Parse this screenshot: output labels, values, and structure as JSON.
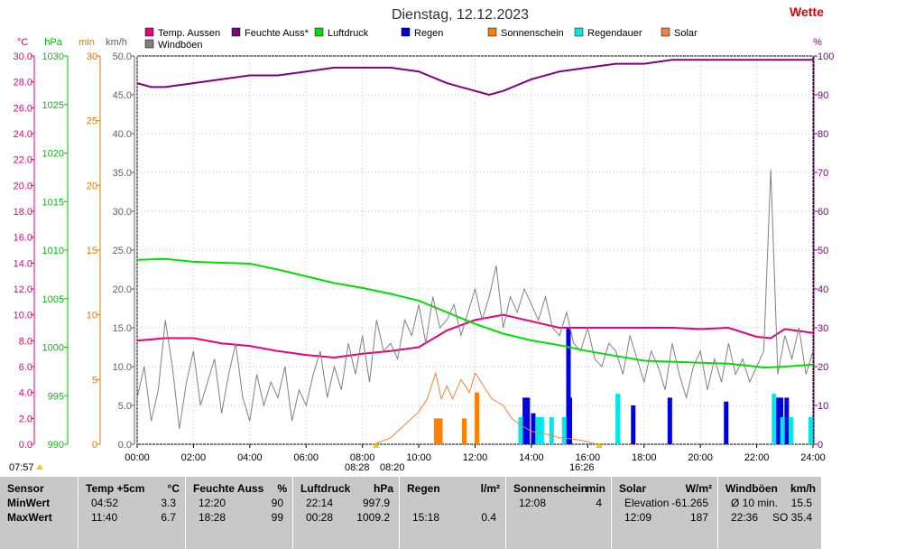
{
  "title": "Dienstag, 12.12.2023",
  "brand": "Wette",
  "legend": [
    {
      "label": "Temp. Aussen",
      "color": "#e8007a"
    },
    {
      "label": "Feuchte Auss*",
      "color": "#800080"
    },
    {
      "label": "Luftdruck",
      "color": "#00e000"
    },
    {
      "label": "Regen",
      "color": "#0000e0"
    },
    {
      "label": "Sonnenschein",
      "color": "#ff8000"
    },
    {
      "label": "Regendauer",
      "color": "#00e8e8"
    },
    {
      "label": "Solar",
      "color": "#f08040"
    },
    {
      "label": "Windböen",
      "color": "#808080"
    }
  ],
  "axis_units": {
    "temp": "°C",
    "pressure": "hPa",
    "sun": "min",
    "wind": "km/h",
    "humidity": "%"
  },
  "markers": {
    "sunrise": "07:57",
    "sun_start": "08:28",
    "sun_start2": "08:20",
    "sunset": "16:26"
  },
  "stats": {
    "columns": [
      {
        "header": "Sensor",
        "unit": "",
        "rows": [
          [
            "MinWert",
            "",
            ""
          ],
          [
            "MaxWert",
            "",
            ""
          ]
        ]
      },
      {
        "header": "Temp +5cm",
        "unit": "°C",
        "rows": [
          [
            "04:52",
            "3.3"
          ],
          [
            "11:40",
            "6.7"
          ]
        ]
      },
      {
        "header": "Feuchte Auss",
        "unit": "%",
        "rows": [
          [
            "12:20",
            "90"
          ],
          [
            "18:28",
            "99"
          ]
        ]
      },
      {
        "header": "Luftdruck",
        "unit": "hPa",
        "rows": [
          [
            "22:14",
            "997.9"
          ],
          [
            "00:28",
            "1009.2"
          ]
        ]
      },
      {
        "header": "Regen",
        "unit": "l/m²",
        "rows": [
          [
            "",
            ""
          ],
          [
            "15:18",
            "0.4"
          ]
        ]
      },
      {
        "header": "Sonnenschein",
        "unit": "min",
        "rows": [
          [
            "12:08",
            "4"
          ],
          [
            "",
            ""
          ]
        ]
      },
      {
        "header": "Solar",
        "unit": "W/m²",
        "rows": [
          [
            "Elevation",
            "-61.265"
          ],
          [
            "12:09",
            "187"
          ]
        ]
      },
      {
        "header": "Windböen",
        "unit": "km/h",
        "rows": [
          [
            "Ø 10 min.",
            "15.5"
          ],
          [
            "22:36",
            "SO 35.4"
          ]
        ]
      }
    ]
  },
  "chart_data": {
    "type": "line",
    "x_ticks": [
      "00:00",
      "02:00",
      "04:00",
      "06:00",
      "08:00",
      "10:00",
      "12:00",
      "14:00",
      "16:00",
      "18:00",
      "20:00",
      "22:00",
      "24:00"
    ],
    "axes": {
      "temp": {
        "range": [
          0,
          30
        ],
        "ticks": [
          "0.0",
          "2.0",
          "4.0",
          "6.0",
          "8.0",
          "10.0",
          "12.0",
          "14.0",
          "16.0",
          "18.0",
          "20.0",
          "22.0",
          "24.0",
          "26.0",
          "28.0",
          "30.0"
        ]
      },
      "pressure": {
        "range": [
          990,
          1030
        ],
        "ticks": [
          "990",
          "995",
          "1000",
          "1005",
          "1010",
          "1015",
          "1020",
          "1025",
          "1030"
        ]
      },
      "sun": {
        "range": [
          0,
          30
        ],
        "ticks": [
          "0",
          "5",
          "10",
          "15",
          "20",
          "25",
          "30"
        ]
      },
      "wind": {
        "range": [
          0,
          50
        ],
        "ticks": [
          "0.0",
          "5.0",
          "10.0",
          "15.0",
          "20.0",
          "25.0",
          "30.0",
          "35.0",
          "40.0",
          "45.0",
          "50.0"
        ]
      },
      "humidity": {
        "range": [
          0,
          100
        ],
        "ticks": [
          "0",
          "10",
          "20",
          "30",
          "40",
          "50",
          "60",
          "70",
          "80",
          "90",
          "100"
        ]
      }
    },
    "series": [
      {
        "name": "Temp. Aussen",
        "axis": "temp",
        "color": "#e8007a",
        "x": [
          0,
          1,
          2,
          3,
          4,
          5,
          6,
          7,
          8,
          9,
          10,
          11,
          12,
          13,
          14,
          15,
          16,
          17,
          18,
          19,
          20,
          21,
          22,
          22.5,
          23,
          24
        ],
        "values": [
          8.0,
          8.2,
          8.2,
          7.8,
          7.6,
          7.2,
          6.9,
          6.7,
          7.0,
          7.2,
          7.5,
          8.8,
          9.6,
          10.0,
          9.5,
          9.0,
          9.0,
          9.0,
          9.0,
          9.0,
          8.9,
          9.0,
          8.3,
          8.2,
          8.9,
          8.6
        ]
      },
      {
        "name": "Feuchte Auss*",
        "axis": "humidity",
        "color": "#800080",
        "x": [
          0,
          0.5,
          1,
          2,
          3,
          4,
          5,
          6,
          7,
          8,
          9,
          10,
          11,
          12,
          12.5,
          13,
          14,
          15,
          16,
          17,
          18,
          19,
          20,
          21,
          22,
          23,
          24
        ],
        "values": [
          93,
          92,
          92,
          93,
          94,
          95,
          95,
          96,
          97,
          97,
          97,
          96,
          93,
          91,
          90,
          91,
          94,
          96,
          97,
          98,
          98,
          99,
          99,
          99,
          99,
          99,
          99
        ]
      },
      {
        "name": "Luftdruck",
        "axis": "pressure",
        "color": "#00e000",
        "x": [
          0,
          1,
          2,
          3,
          4,
          5,
          6,
          7,
          8,
          9,
          10,
          11,
          12,
          13,
          14,
          15,
          16,
          17,
          18,
          19,
          20,
          21,
          22,
          22.25,
          23,
          24
        ],
        "values": [
          1009.0,
          1009.1,
          1008.8,
          1008.7,
          1008.6,
          1008.0,
          1007.3,
          1006.6,
          1006.1,
          1005.5,
          1004.8,
          1003.6,
          1002.4,
          1001.4,
          1000.7,
          1000.2,
          999.6,
          999.1,
          998.6,
          998.5,
          998.4,
          998.3,
          998.0,
          997.9,
          998.0,
          998.2
        ]
      },
      {
        "name": "Solar",
        "axis": "sun",
        "color": "#f08040",
        "x": [
          8.4,
          9,
          9.5,
          10,
          10.3,
          10.6,
          10.8,
          11,
          11.2,
          11.5,
          11.8,
          12,
          12.1,
          12.3,
          12.6,
          13,
          13.3,
          13.6,
          14,
          14.5,
          15,
          15.5,
          16,
          16.3
        ],
        "values": [
          0,
          0.5,
          1.5,
          2.5,
          3.5,
          5.5,
          3.5,
          4.5,
          3.5,
          5.0,
          4.0,
          5.5,
          5.2,
          4.5,
          3.5,
          3.0,
          2.0,
          1.5,
          1.0,
          0.8,
          0.5,
          0.4,
          0.2,
          0
        ]
      },
      {
        "name": "Windböen",
        "axis": "wind",
        "color": "#808080",
        "x": [
          0,
          0.25,
          0.5,
          0.75,
          1,
          1.25,
          1.5,
          1.75,
          2,
          2.25,
          2.5,
          2.75,
          3,
          3.25,
          3.5,
          3.75,
          4,
          4.25,
          4.5,
          4.75,
          5,
          5.25,
          5.5,
          5.75,
          6,
          6.25,
          6.5,
          6.75,
          7,
          7.25,
          7.5,
          7.75,
          8,
          8.25,
          8.5,
          8.75,
          9,
          9.25,
          9.5,
          9.75,
          10,
          10.25,
          10.5,
          10.75,
          11,
          11.25,
          11.5,
          11.75,
          12,
          12.25,
          12.5,
          12.75,
          13,
          13.25,
          13.5,
          13.75,
          14,
          14.25,
          14.5,
          14.75,
          15,
          15.25,
          15.5,
          15.75,
          16,
          16.25,
          16.5,
          16.75,
          17,
          17.25,
          17.5,
          17.75,
          18,
          18.25,
          18.5,
          18.75,
          19,
          19.25,
          19.5,
          19.75,
          20,
          20.25,
          20.5,
          20.75,
          21,
          21.25,
          21.5,
          21.75,
          22,
          22.25,
          22.5,
          22.75,
          23,
          23.25,
          23.5,
          23.75,
          24
        ],
        "values": [
          6,
          10,
          3,
          7,
          16,
          10,
          2,
          8,
          12,
          5,
          8,
          11,
          4,
          9,
          13,
          6,
          3,
          9,
          5,
          8,
          6,
          10,
          3,
          7,
          5,
          9,
          12,
          6,
          10,
          7,
          13,
          9,
          14,
          8,
          16,
          12,
          13,
          11,
          16,
          14,
          18,
          13,
          19,
          15,
          16,
          18,
          14,
          17,
          20,
          16,
          19,
          23,
          15,
          19,
          17,
          20,
          18,
          16,
          19,
          15,
          14,
          17,
          13,
          12,
          15,
          11,
          10,
          13,
          12,
          9,
          14,
          11,
          8,
          12,
          10,
          7,
          13,
          9,
          6,
          10,
          12,
          7,
          11,
          8,
          13,
          9,
          11,
          8,
          10,
          12,
          35.4,
          9,
          14,
          11,
          15,
          9,
          12
        ]
      }
    ],
    "bars": {
      "Sonnenschein": {
        "axis": "sun",
        "color": "#ff8000",
        "x": [
          10.6,
          10.75,
          11.6,
          12.05
        ],
        "values": [
          2,
          2,
          2,
          4
        ]
      },
      "Regen": {
        "axis": "humidity",
        "color": "#0000e0",
        "x": [
          13.75,
          13.85,
          14.05,
          15.3,
          15.35,
          17.6,
          18.9,
          20.9,
          22.75,
          22.85,
          23.05
        ],
        "values": [
          12,
          12,
          8,
          30,
          12,
          10,
          12,
          11,
          12,
          12,
          12
        ]
      },
      "Regendauer": {
        "axis": "humidity",
        "color": "#00e8e8",
        "x": [
          13.6,
          14.2,
          14.35,
          14.7,
          15.15,
          17.05,
          22.6,
          22.9,
          23.2,
          23.9
        ],
        "values": [
          7,
          7,
          7,
          7,
          7,
          13,
          13,
          7,
          7,
          7
        ]
      }
    },
    "grid": true,
    "legend_position": "top"
  }
}
